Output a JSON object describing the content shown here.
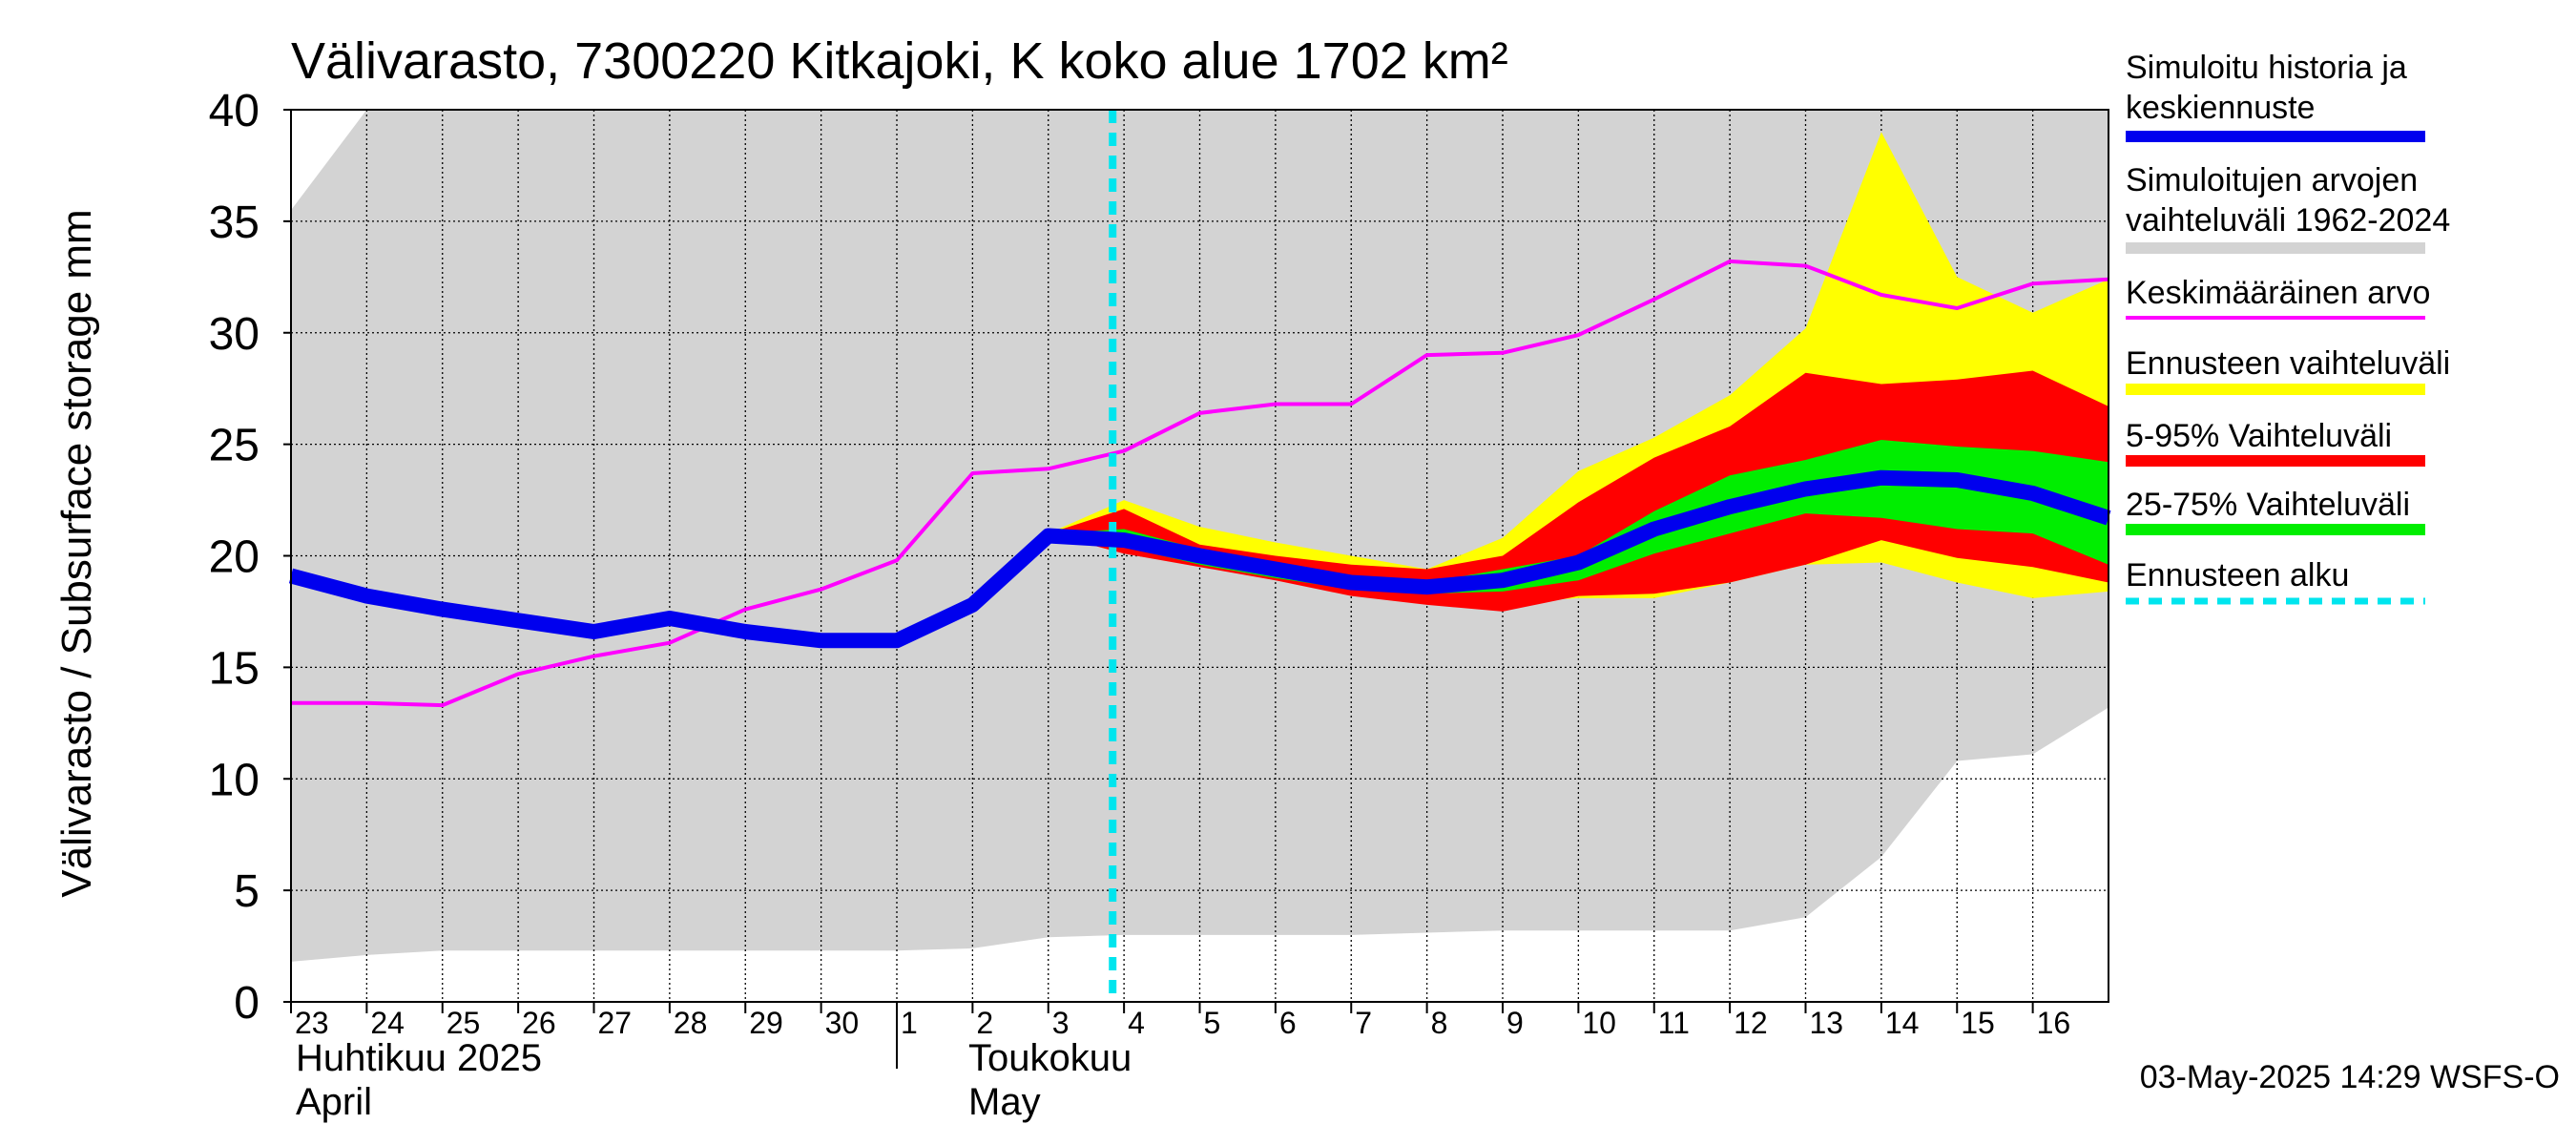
{
  "chart_data": {
    "type": "area",
    "title": "Välivarasto, 7300220 Kitkajoki, K koko alue 1702 km²",
    "ylabel": "Välivarasto / Subsurface storage  mm",
    "xlabel": "",
    "ylim": [
      0,
      40
    ],
    "y_ticks": [
      0,
      5,
      10,
      15,
      20,
      25,
      30,
      35,
      40
    ],
    "x_tick_labels": [
      "23",
      "24",
      "25",
      "26",
      "27",
      "28",
      "29",
      "30",
      "1",
      "2",
      "3",
      "4",
      "5",
      "6",
      "7",
      "8",
      "9",
      "10",
      "11",
      "12",
      "13",
      "14",
      "15",
      "16"
    ],
    "month_labels": [
      {
        "line1": "Huhtikuu  2025",
        "line2": "April"
      },
      {
        "line1": "Toukokuu",
        "line2": "May"
      }
    ],
    "grid": true,
    "legend_position": "right",
    "timestamp": "03-May-2025 14:29 WSFS-O",
    "forecast_start_day": 10.85,
    "colors": {
      "history": "#0000ee",
      "range_hist": "#d3d3d3",
      "mean": "#ff00ff",
      "forecast_range": "#ffff00",
      "p5_95": "#ff0000",
      "p25_75": "#00ee00",
      "forecast_start": "#00e5ee"
    },
    "legend": [
      {
        "lines": [
          "Simuloitu historia ja",
          "keskiennuste"
        ],
        "key": "history"
      },
      {
        "lines": [
          "Simuloitujen arvojen",
          "vaihteluväli 1962-2024"
        ],
        "key": "range_hist"
      },
      {
        "lines": [
          "Keskimääräinen arvo"
        ],
        "key": "mean"
      },
      {
        "lines": [
          "Ennusteen vaihteluväli"
        ],
        "key": "forecast_range"
      },
      {
        "lines": [
          "5-95% Vaihteluväli"
        ],
        "key": "p5_95"
      },
      {
        "lines": [
          "25-75% Vaihteluväli"
        ],
        "key": "p25_75"
      },
      {
        "lines": [
          "Ennusteen alku"
        ],
        "key": "forecast_start"
      }
    ],
    "series": [
      {
        "name": "Simuloitujen arvojen vaihteluväli 1962-2024",
        "kind": "band",
        "x": [
          0,
          1,
          2,
          3,
          4,
          5,
          6,
          7,
          8,
          9,
          10,
          11,
          12,
          13,
          14,
          15,
          16,
          17,
          18,
          19,
          20,
          21,
          22,
          23,
          24
        ],
        "low": [
          1.8,
          2.1,
          2.3,
          2.3,
          2.3,
          2.3,
          2.3,
          2.3,
          2.3,
          2.4,
          2.9,
          3.0,
          3.0,
          3.0,
          3.0,
          3.1,
          3.2,
          3.2,
          3.2,
          3.2,
          3.8,
          6.5,
          10.8,
          11.1,
          13.2
        ],
        "high": [
          35.5,
          40,
          40,
          40,
          40,
          40,
          40,
          40,
          40,
          40,
          40,
          40,
          40,
          40,
          40,
          40,
          40,
          40,
          40,
          40,
          40,
          40,
          40,
          40,
          40
        ]
      },
      {
        "name": "Ennusteen vaihteluväli",
        "kind": "band",
        "x": [
          10,
          11,
          12,
          13,
          14,
          15,
          16,
          17,
          18,
          19,
          20,
          21,
          22,
          23,
          24
        ],
        "low": [
          21.0,
          20.5,
          19.9,
          19.2,
          18.5,
          18.1,
          17.9,
          18.1,
          18.1,
          18.8,
          19.6,
          19.7,
          18.8,
          18.1,
          18.4
        ],
        "high": [
          21.0,
          22.5,
          21.3,
          20.6,
          20.0,
          19.4,
          20.8,
          23.8,
          25.3,
          27.2,
          30.2,
          39.0,
          32.5,
          30.9,
          32.4
        ]
      },
      {
        "name": "5-95% Vaihteluväli",
        "kind": "band",
        "x": [
          10,
          11,
          12,
          13,
          14,
          15,
          16,
          17,
          18,
          19,
          20,
          21,
          22,
          23,
          24
        ],
        "low": [
          21.0,
          20.1,
          19.5,
          18.9,
          18.2,
          17.8,
          17.5,
          18.2,
          18.3,
          18.8,
          19.6,
          20.7,
          19.9,
          19.5,
          18.8
        ],
        "high": [
          21.0,
          22.1,
          20.5,
          20.0,
          19.6,
          19.4,
          20.0,
          22.4,
          24.4,
          25.8,
          28.2,
          27.7,
          27.9,
          28.3,
          26.7
        ]
      },
      {
        "name": "25-75% Vaihteluväli",
        "kind": "band",
        "x": [
          10,
          11,
          12,
          13,
          14,
          15,
          16,
          17,
          18,
          19,
          20,
          21,
          22,
          23,
          24
        ],
        "low": [
          21.0,
          20.4,
          19.6,
          19.0,
          18.5,
          18.3,
          18.4,
          18.9,
          20.1,
          21.0,
          21.9,
          21.7,
          21.2,
          21.0,
          19.6
        ],
        "high": [
          21.0,
          21.2,
          20.3,
          19.6,
          19.1,
          18.8,
          19.4,
          20.0,
          22.0,
          23.6,
          24.3,
          25.2,
          24.9,
          24.7,
          24.2
        ]
      },
      {
        "name": "Keskimääräinen arvo",
        "kind": "line",
        "x": [
          0,
          1,
          2,
          3,
          4,
          5,
          6,
          7,
          8,
          9,
          10,
          11,
          12,
          13,
          14,
          15,
          16,
          17,
          18,
          19,
          20,
          21,
          22,
          23,
          24
        ],
        "values": [
          13.4,
          13.4,
          13.3,
          14.7,
          15.5,
          16.1,
          17.6,
          18.5,
          19.8,
          23.7,
          23.9,
          24.7,
          26.4,
          26.8,
          26.8,
          29.0,
          29.1,
          29.9,
          31.5,
          33.2,
          33.0,
          31.7,
          31.1,
          32.2,
          32.4
        ]
      },
      {
        "name": "Simuloitu historia ja keskiennuste",
        "kind": "line",
        "x": [
          0,
          1,
          2,
          3,
          4,
          5,
          6,
          7,
          8,
          9,
          10,
          11,
          12,
          13,
          14,
          15,
          16,
          17,
          18,
          19,
          20,
          21,
          22,
          23,
          24
        ],
        "values": [
          19.1,
          18.2,
          17.6,
          17.1,
          16.6,
          17.2,
          16.6,
          16.2,
          16.2,
          17.8,
          20.9,
          20.7,
          20.0,
          19.4,
          18.8,
          18.6,
          18.9,
          19.7,
          21.2,
          22.2,
          23.0,
          23.5,
          23.4,
          22.8,
          21.7
        ]
      }
    ]
  }
}
